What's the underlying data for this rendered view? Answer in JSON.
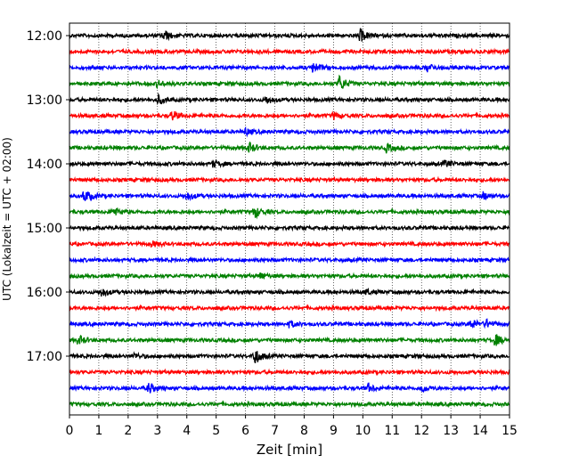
{
  "chart_data": {
    "type": "line",
    "title": "",
    "xlabel": "Zeit  [min]",
    "ylabel": "UTC (Lokalzeit = UTC + 02:00)",
    "xlim": [
      0,
      15
    ],
    "x_ticks": [
      "0",
      "1",
      "2",
      "3",
      "4",
      "5",
      "6",
      "7",
      "8",
      "9",
      "10",
      "11",
      "12",
      "13",
      "14",
      "15"
    ],
    "y_ticks": [
      "12:00",
      "13:00",
      "14:00",
      "15:00",
      "16:00",
      "17:00"
    ],
    "grid": "vertical dotted at each minute",
    "trace_colors": [
      "#000000",
      "#ff0000",
      "#0000ff",
      "#008000"
    ],
    "traces": [
      {
        "start_utc": "12:00",
        "color": "#000000",
        "events": [
          {
            "t": 3.2,
            "amp": 0.8
          },
          {
            "t": 9.9,
            "amp": 1.0
          }
        ]
      },
      {
        "start_utc": "12:15",
        "color": "#ff0000",
        "events": []
      },
      {
        "start_utc": "12:30",
        "color": "#0000ff",
        "events": [
          {
            "t": 8.3,
            "amp": 0.8
          },
          {
            "t": 12.2,
            "amp": 0.6
          }
        ]
      },
      {
        "start_utc": "12:45",
        "color": "#008000",
        "events": [
          {
            "t": 9.2,
            "amp": 1.2
          },
          {
            "t": 3.0,
            "amp": 0.5
          }
        ]
      },
      {
        "start_utc": "13:00",
        "color": "#000000",
        "events": [
          {
            "t": 3.0,
            "amp": 0.7
          },
          {
            "t": 6.7,
            "amp": 0.6
          }
        ]
      },
      {
        "start_utc": "13:15",
        "color": "#ff0000",
        "events": [
          {
            "t": 3.5,
            "amp": 0.7
          },
          {
            "t": 9.0,
            "amp": 0.5
          }
        ]
      },
      {
        "start_utc": "13:30",
        "color": "#0000ff",
        "events": [
          {
            "t": 6.0,
            "amp": 0.5
          }
        ]
      },
      {
        "start_utc": "13:45",
        "color": "#008000",
        "events": [
          {
            "t": 6.1,
            "amp": 0.8
          },
          {
            "t": 10.8,
            "amp": 0.6
          }
        ]
      },
      {
        "start_utc": "14:00",
        "color": "#000000",
        "events": [
          {
            "t": 4.9,
            "amp": 0.5
          },
          {
            "t": 12.8,
            "amp": 0.5
          }
        ]
      },
      {
        "start_utc": "14:15",
        "color": "#ff0000",
        "events": []
      },
      {
        "start_utc": "14:30",
        "color": "#0000ff",
        "events": [
          {
            "t": 0.5,
            "amp": 1.0
          },
          {
            "t": 4.0,
            "amp": 0.6
          },
          {
            "t": 14.1,
            "amp": 0.5
          }
        ]
      },
      {
        "start_utc": "14:45",
        "color": "#008000",
        "events": [
          {
            "t": 1.5,
            "amp": 0.7
          },
          {
            "t": 6.3,
            "amp": 0.9
          }
        ]
      },
      {
        "start_utc": "15:00",
        "color": "#000000",
        "events": []
      },
      {
        "start_utc": "15:15",
        "color": "#ff0000",
        "events": [
          {
            "t": 2.8,
            "amp": 0.4
          }
        ]
      },
      {
        "start_utc": "15:30",
        "color": "#0000ff",
        "events": []
      },
      {
        "start_utc": "15:45",
        "color": "#008000",
        "events": [
          {
            "t": 6.5,
            "amp": 0.5
          }
        ]
      },
      {
        "start_utc": "16:00",
        "color": "#000000",
        "events": [
          {
            "t": 1.1,
            "amp": 0.6
          },
          {
            "t": 10.1,
            "amp": 0.4
          }
        ]
      },
      {
        "start_utc": "16:15",
        "color": "#ff0000",
        "events": []
      },
      {
        "start_utc": "16:30",
        "color": "#0000ff",
        "events": [
          {
            "t": 7.5,
            "amp": 0.5
          },
          {
            "t": 13.7,
            "amp": 0.7
          },
          {
            "t": 14.2,
            "amp": 0.6
          }
        ]
      },
      {
        "start_utc": "16:45",
        "color": "#008000",
        "events": [
          {
            "t": 0.3,
            "amp": 0.7
          },
          {
            "t": 14.5,
            "amp": 0.9
          }
        ]
      },
      {
        "start_utc": "17:00",
        "color": "#000000",
        "events": [
          {
            "t": 2.2,
            "amp": 0.4
          },
          {
            "t": 6.3,
            "amp": 1.3
          }
        ]
      },
      {
        "start_utc": "17:15",
        "color": "#ff0000",
        "events": []
      },
      {
        "start_utc": "17:30",
        "color": "#0000ff",
        "events": [
          {
            "t": 2.7,
            "amp": 0.8
          },
          {
            "t": 10.2,
            "amp": 0.6
          },
          {
            "t": 12.0,
            "amp": 0.5
          }
        ]
      },
      {
        "start_utc": "17:45",
        "color": "#008000",
        "events": []
      }
    ]
  }
}
